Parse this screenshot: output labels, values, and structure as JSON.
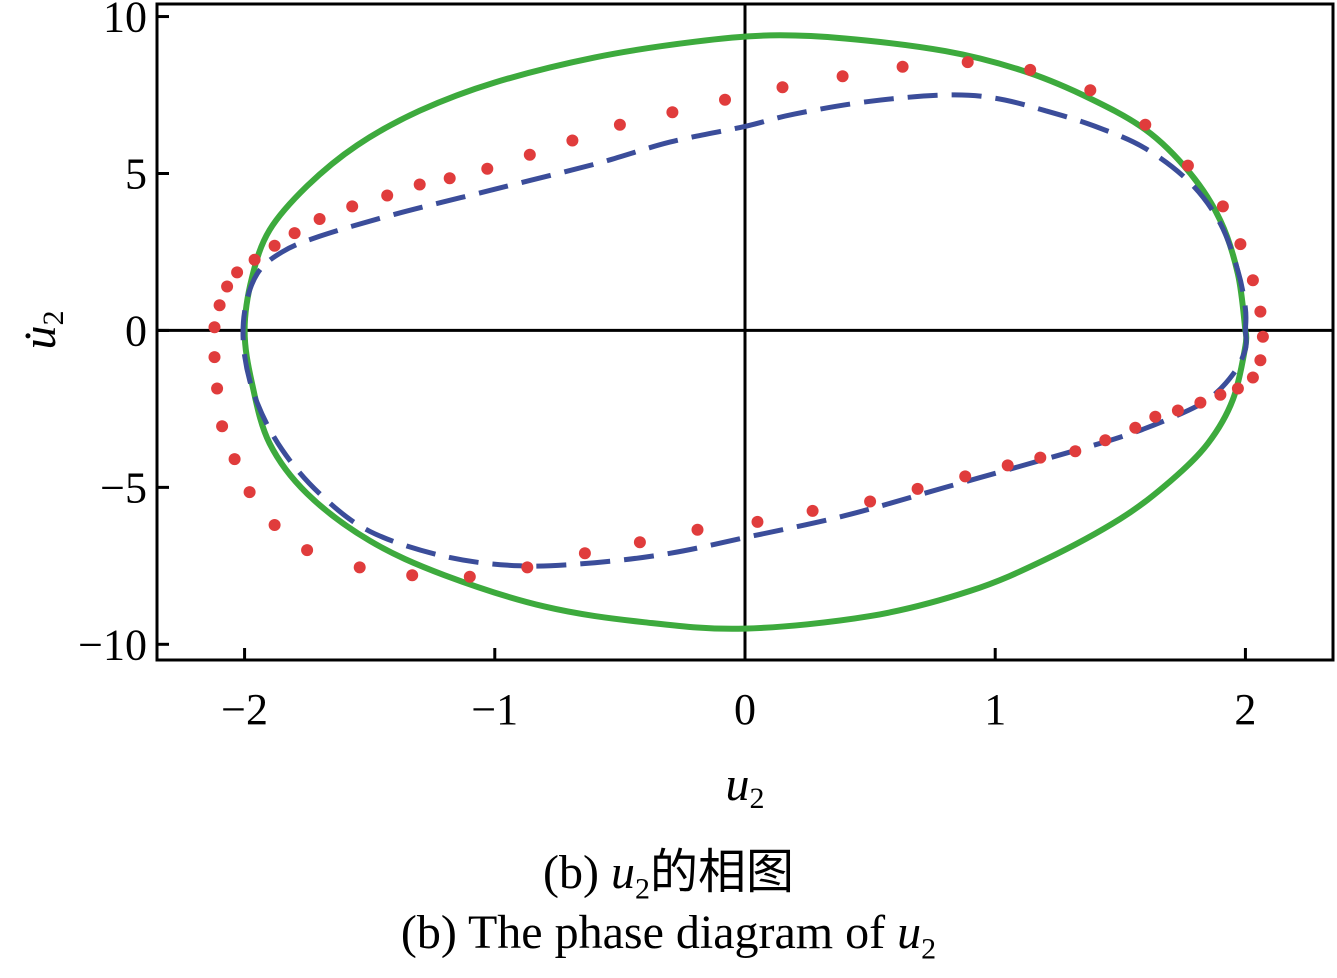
{
  "chart_data": {
    "type": "line",
    "xlabel": {
      "var": "u",
      "sub": "2"
    },
    "ylabel": {
      "var": "u̇",
      "sub": "2"
    },
    "xlim": [
      -2.35,
      2.35
    ],
    "ylim": [
      -10.5,
      10.4
    ],
    "xticks": [
      -2,
      -1,
      0,
      1,
      2
    ],
    "yticks": [
      -10,
      -5,
      0,
      5,
      10
    ],
    "xtick_labels": [
      "−2",
      "−1",
      "0",
      "1",
      "2"
    ],
    "ytick_labels": [
      "−10",
      "−5",
      "0",
      "5",
      "10"
    ],
    "grid": false,
    "zero_lines": true,
    "series": [
      {
        "style": "solid",
        "color": "#3daa3d",
        "points": [
          [
            2.0,
            0
          ],
          [
            2.0,
            -0.5
          ],
          [
            1.95,
            -2.2
          ],
          [
            1.85,
            -3.6
          ],
          [
            1.7,
            -4.8
          ],
          [
            1.5,
            -6.0
          ],
          [
            1.2,
            -7.3
          ],
          [
            0.9,
            -8.3
          ],
          [
            0.5,
            -9.1
          ],
          [
            0.0,
            -9.5
          ],
          [
            -0.4,
            -9.3
          ],
          [
            -0.8,
            -8.8
          ],
          [
            -1.2,
            -7.8
          ],
          [
            -1.5,
            -6.7
          ],
          [
            -1.75,
            -5.2
          ],
          [
            -1.9,
            -3.6
          ],
          [
            -1.97,
            -1.7
          ],
          [
            -2.0,
            0
          ],
          [
            -1.97,
            1.7
          ],
          [
            -1.9,
            3.2
          ],
          [
            -1.75,
            4.6
          ],
          [
            -1.55,
            5.9
          ],
          [
            -1.3,
            7.0
          ],
          [
            -1.0,
            7.9
          ],
          [
            -0.6,
            8.7
          ],
          [
            -0.2,
            9.2
          ],
          [
            0.1,
            9.4
          ],
          [
            0.4,
            9.3
          ],
          [
            0.8,
            8.9
          ],
          [
            1.1,
            8.3
          ],
          [
            1.35,
            7.5
          ],
          [
            1.6,
            6.4
          ],
          [
            1.78,
            5.0
          ],
          [
            1.9,
            3.5
          ],
          [
            1.97,
            1.8
          ],
          [
            2.0,
            0
          ]
        ]
      },
      {
        "style": "dashed",
        "color": "#3b4d9a",
        "points": [
          [
            2.0,
            0
          ],
          [
            2.0,
            -0.6
          ],
          [
            1.95,
            -1.4
          ],
          [
            1.85,
            -2.2
          ],
          [
            1.7,
            -2.8
          ],
          [
            1.5,
            -3.4
          ],
          [
            1.2,
            -4.1
          ],
          [
            0.8,
            -5.0
          ],
          [
            0.4,
            -5.9
          ],
          [
            0.0,
            -6.6
          ],
          [
            -0.3,
            -7.1
          ],
          [
            -0.6,
            -7.4
          ],
          [
            -0.9,
            -7.5
          ],
          [
            -1.2,
            -7.2
          ],
          [
            -1.5,
            -6.4
          ],
          [
            -1.7,
            -5.2
          ],
          [
            -1.85,
            -3.8
          ],
          [
            -1.95,
            -2.3
          ],
          [
            -2.0,
            -0.8
          ],
          [
            -2.0,
            0.6
          ],
          [
            -1.95,
            1.8
          ],
          [
            -1.85,
            2.5
          ],
          [
            -1.7,
            3.0
          ],
          [
            -1.4,
            3.7
          ],
          [
            -1.0,
            4.5
          ],
          [
            -0.6,
            5.3
          ],
          [
            -0.3,
            6.0
          ],
          [
            0.0,
            6.5
          ],
          [
            0.2,
            6.9
          ],
          [
            0.5,
            7.3
          ],
          [
            0.8,
            7.5
          ],
          [
            1.0,
            7.4
          ],
          [
            1.2,
            7.0
          ],
          [
            1.4,
            6.5
          ],
          [
            1.6,
            5.8
          ],
          [
            1.78,
            4.7
          ],
          [
            1.9,
            3.4
          ],
          [
            1.97,
            1.9
          ],
          [
            2.0,
            0.7
          ],
          [
            2.0,
            0
          ]
        ]
      },
      {
        "style": "dotted",
        "color": "#e03c3c",
        "points": [
          [
            -2.12,
            0.1
          ],
          [
            -2.1,
            0.8
          ],
          [
            -2.07,
            1.4
          ],
          [
            -2.03,
            1.85
          ],
          [
            -1.96,
            2.25
          ],
          [
            -1.88,
            2.7
          ],
          [
            -1.8,
            3.1
          ],
          [
            -1.7,
            3.55
          ],
          [
            -1.57,
            3.95
          ],
          [
            -1.43,
            4.3
          ],
          [
            -1.3,
            4.65
          ],
          [
            -1.18,
            4.85
          ],
          [
            -1.03,
            5.15
          ],
          [
            -0.86,
            5.6
          ],
          [
            -0.69,
            6.05
          ],
          [
            -0.5,
            6.55
          ],
          [
            -0.29,
            6.95
          ],
          [
            -0.08,
            7.35
          ],
          [
            0.15,
            7.75
          ],
          [
            0.39,
            8.1
          ],
          [
            0.63,
            8.4
          ],
          [
            0.89,
            8.55
          ],
          [
            1.14,
            8.3
          ],
          [
            1.38,
            7.65
          ],
          [
            1.6,
            6.55
          ],
          [
            1.77,
            5.25
          ],
          [
            1.91,
            3.95
          ],
          [
            1.98,
            2.75
          ],
          [
            2.03,
            1.6
          ],
          [
            2.06,
            0.6
          ],
          [
            2.07,
            -0.2
          ],
          [
            2.06,
            -0.95
          ],
          [
            2.03,
            -1.5
          ],
          [
            1.97,
            -1.85
          ],
          [
            1.9,
            -2.05
          ],
          [
            1.82,
            -2.3
          ],
          [
            1.73,
            -2.55
          ],
          [
            1.64,
            -2.75
          ],
          [
            1.56,
            -3.1
          ],
          [
            1.44,
            -3.5
          ],
          [
            1.32,
            -3.85
          ],
          [
            1.18,
            -4.05
          ],
          [
            1.05,
            -4.3
          ],
          [
            0.88,
            -4.65
          ],
          [
            0.69,
            -5.05
          ],
          [
            0.5,
            -5.45
          ],
          [
            0.27,
            -5.75
          ],
          [
            0.05,
            -6.1
          ],
          [
            -0.19,
            -6.35
          ],
          [
            -0.42,
            -6.75
          ],
          [
            -0.64,
            -7.1
          ],
          [
            -0.87,
            -7.55
          ],
          [
            -1.1,
            -7.85
          ],
          [
            -1.33,
            -7.8
          ],
          [
            -1.54,
            -7.55
          ],
          [
            -1.75,
            -7.0
          ],
          [
            -1.88,
            -6.2
          ],
          [
            -1.98,
            -5.15
          ],
          [
            -2.04,
            -4.1
          ],
          [
            -2.09,
            -3.05
          ],
          [
            -2.11,
            -1.85
          ],
          [
            -2.12,
            -0.85
          ]
        ]
      }
    ]
  },
  "caption": {
    "line1_prefix": "(b) ",
    "line1_var": "u",
    "line1_sub": "2",
    "line1_suffix": "的相图",
    "line2_prefix": "(b) The phase diagram of ",
    "line2_var": "u",
    "line2_sub": "2"
  }
}
